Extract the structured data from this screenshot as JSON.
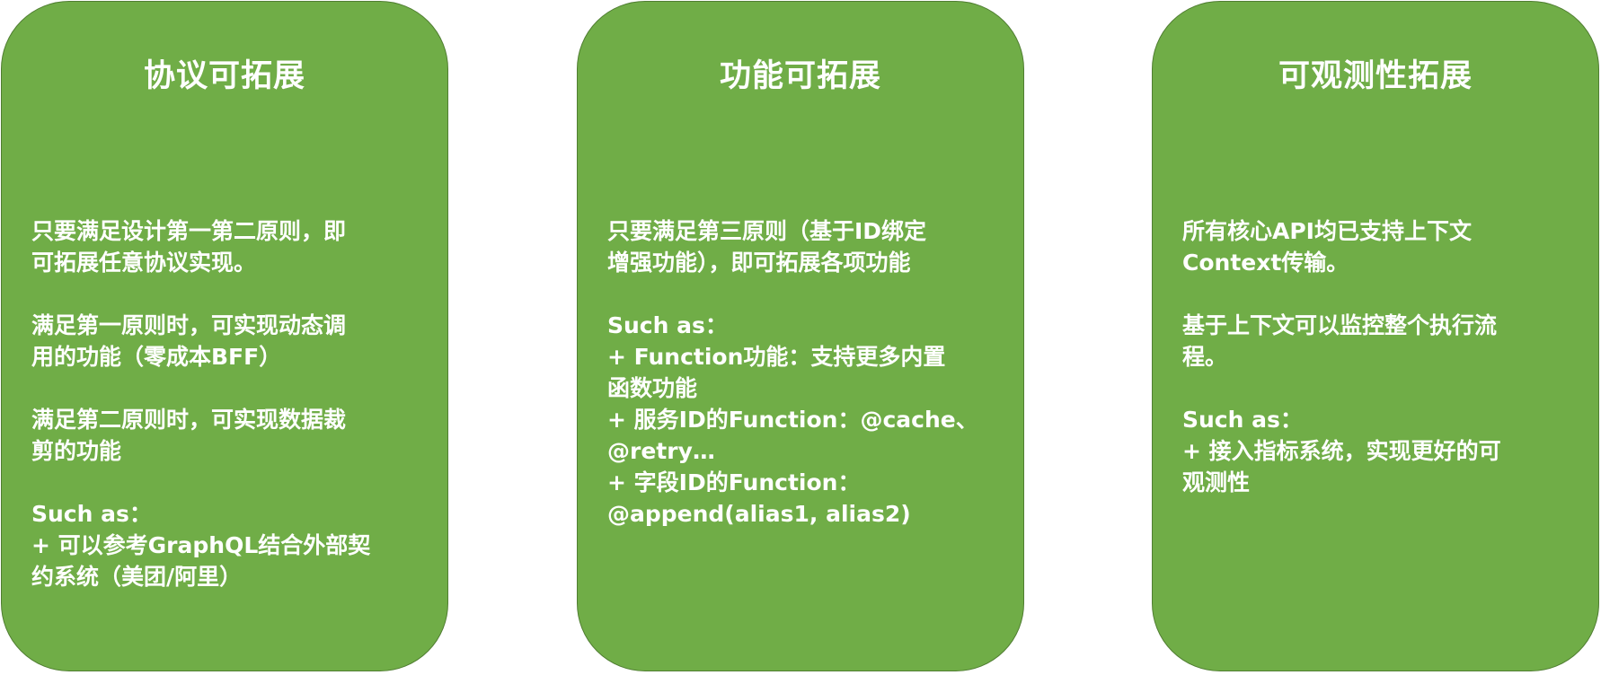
{
  "cards": [
    {
      "title": "协议可拓展",
      "paragraphs": [
        [
          "只要满足设计第一第二原则，即",
          "可拓展任意协议实现。"
        ],
        [
          "满足第一原则时，可实现动态调",
          "用的功能（零成本BFF）"
        ],
        [
          "满足第二原则时，可实现数据裁",
          "剪的功能"
        ],
        [
          "Such as：",
          "+ 可以参考GraphQL结合外部契",
          "约系统（美团/阿里）"
        ]
      ]
    },
    {
      "title": "功能可拓展",
      "paragraphs": [
        [
          "只要满足第三原则（基于ID绑定",
          "增强功能），即可拓展各项功能"
        ],
        [
          "Such as：",
          "+ Function功能：支持更多内置",
          "函数功能",
          "+ 服务ID的Function：@cache、",
          "@retry…",
          "+ 字段ID的Function：",
          "@append(alias1, alias2)"
        ]
      ]
    },
    {
      "title": "可观测性拓展",
      "paragraphs": [
        [
          "所有核心API均已支持上下文",
          "Context传输。"
        ],
        [
          "基于上下文可以监控整个执行流",
          "程。"
        ],
        [
          "Such as：",
          "+ 接入指标系统，实现更好的可",
          "观测性"
        ]
      ]
    }
  ]
}
